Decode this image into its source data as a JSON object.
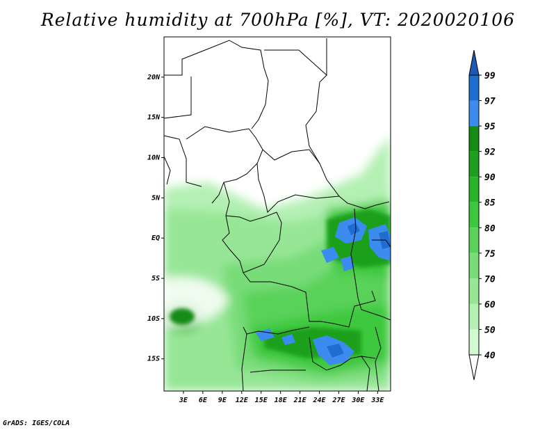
{
  "title": "Relative humidity at 700hPa [%], VT: 2020020106",
  "credit": "GrADS: IGES/COLA",
  "map": {
    "lon_range": [
      0,
      35
    ],
    "lat_range": [
      -19,
      25
    ],
    "lat_ticks": [
      {
        "value": 20,
        "label": "20N"
      },
      {
        "value": 15,
        "label": "15N"
      },
      {
        "value": 10,
        "label": "10N"
      },
      {
        "value": 5,
        "label": "5N"
      },
      {
        "value": 0,
        "label": "EQ"
      },
      {
        "value": -5,
        "label": "5S"
      },
      {
        "value": -10,
        "label": "10S"
      },
      {
        "value": -15,
        "label": "15S"
      }
    ],
    "lon_ticks": [
      {
        "value": 3,
        "label": "3E"
      },
      {
        "value": 6,
        "label": "6E"
      },
      {
        "value": 9,
        "label": "9E"
      },
      {
        "value": 12,
        "label": "12E"
      },
      {
        "value": 15,
        "label": "15E"
      },
      {
        "value": 18,
        "label": "18E"
      },
      {
        "value": 21,
        "label": "21E"
      },
      {
        "value": 24,
        "label": "24E"
      },
      {
        "value": 27,
        "label": "27E"
      },
      {
        "value": 30,
        "label": "30E"
      },
      {
        "value": 33,
        "label": "33E"
      }
    ]
  },
  "colorbar": {
    "levels": [
      {
        "label": "99",
        "color": "#1e6ed2"
      },
      {
        "label": "97",
        "color": "#3c8cf0"
      },
      {
        "label": "95",
        "color": "#148c14"
      },
      {
        "label": "92",
        "color": "#1ea01e"
      },
      {
        "label": "90",
        "color": "#28b428"
      },
      {
        "label": "85",
        "color": "#3cc83c"
      },
      {
        "label": "80",
        "color": "#5ad25a"
      },
      {
        "label": "75",
        "color": "#78dc78"
      },
      {
        "label": "70",
        "color": "#96e696"
      },
      {
        "label": "60",
        "color": "#b4f0b4"
      },
      {
        "label": "50",
        "color": "#d2fad2"
      },
      {
        "label": "40",
        "color": "#ffffff"
      }
    ],
    "top_color": "#1e5ab4",
    "bottom_color": "#ffffff"
  }
}
